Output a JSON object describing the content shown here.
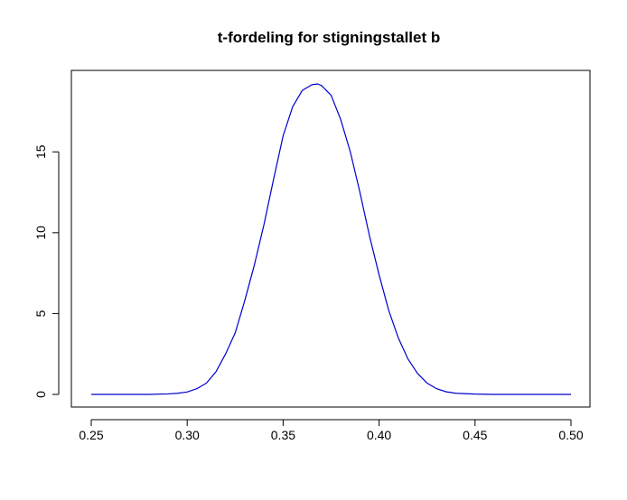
{
  "chart_data": {
    "type": "line",
    "title": "t-fordeling for stigningstallet b",
    "xlabel": "",
    "ylabel": "",
    "xlim": [
      0.25,
      0.5
    ],
    "ylim": [
      0,
      19.2
    ],
    "x_ticks": [
      0.25,
      0.3,
      0.35,
      0.4,
      0.45,
      0.5
    ],
    "x_tick_labels": [
      "0.25",
      "0.30",
      "0.35",
      "0.40",
      "0.45",
      "0.50"
    ],
    "y_ticks": [
      0,
      5,
      10,
      15
    ],
    "y_tick_labels": [
      "0",
      "5",
      "10",
      "15"
    ],
    "grid": false,
    "series": [
      {
        "color": "#0000cc",
        "x": [
          0.25,
          0.26,
          0.27,
          0.28,
          0.29,
          0.295,
          0.3,
          0.305,
          0.31,
          0.315,
          0.32,
          0.325,
          0.33,
          0.335,
          0.34,
          0.345,
          0.35,
          0.355,
          0.36,
          0.365,
          0.368,
          0.37,
          0.375,
          0.38,
          0.385,
          0.39,
          0.395,
          0.4,
          0.405,
          0.41,
          0.415,
          0.42,
          0.425,
          0.43,
          0.435,
          0.44,
          0.45,
          0.46,
          0.47,
          0.48,
          0.49,
          0.5
        ],
        "y": [
          0.0,
          0.0,
          0.0,
          0.0,
          0.03,
          0.07,
          0.15,
          0.35,
          0.7,
          1.4,
          2.5,
          3.8,
          5.8,
          8.0,
          10.5,
          13.3,
          16.0,
          17.8,
          18.8,
          19.15,
          19.2,
          19.1,
          18.5,
          17.0,
          15.0,
          12.5,
          9.8,
          7.4,
          5.2,
          3.5,
          2.2,
          1.3,
          0.7,
          0.35,
          0.16,
          0.07,
          0.02,
          0.0,
          0.0,
          0.0,
          0.0,
          0.0
        ]
      }
    ]
  }
}
